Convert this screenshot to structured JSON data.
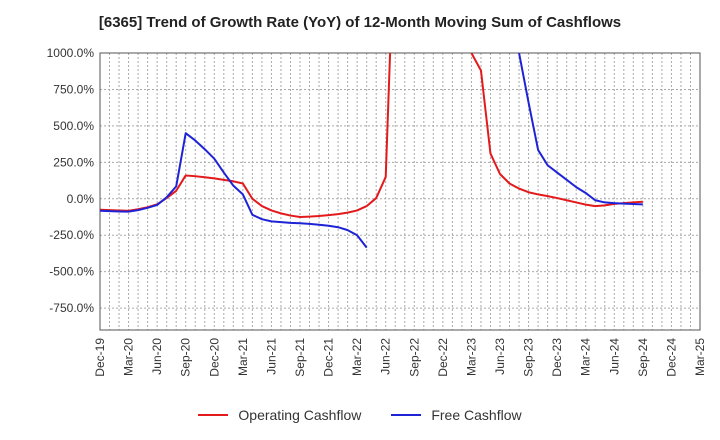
{
  "chart_data": {
    "type": "line",
    "title": "[6365]  Trend of Growth Rate (YoY) of 12-Month Moving Sum of Cashflows",
    "xlabel": "",
    "ylabel": "",
    "ylim": [
      -900,
      1000
    ],
    "y_ticks": [
      1000,
      750,
      500,
      250,
      0,
      -250,
      -500,
      -750
    ],
    "y_tick_labels": [
      "1000.0%",
      "750.0%",
      "500.0%",
      "250.0%",
      "0.0%",
      "-250.0%",
      "-500.0%",
      "-750.0%"
    ],
    "x_tick_labels": [
      "Dec-19",
      "Mar-20",
      "Jun-20",
      "Sep-20",
      "Dec-20",
      "Mar-21",
      "Jun-21",
      "Sep-21",
      "Dec-21",
      "Mar-22",
      "Jun-22",
      "Sep-22",
      "Dec-22",
      "Mar-23",
      "Jun-23",
      "Sep-23",
      "Dec-23",
      "Mar-24",
      "Jun-24",
      "Sep-24",
      "Dec-24",
      "Mar-25"
    ],
    "x_months": [
      "2019-12",
      "2020-01",
      "2020-02",
      "2020-03",
      "2020-04",
      "2020-05",
      "2020-06",
      "2020-07",
      "2020-08",
      "2020-09",
      "2020-10",
      "2020-11",
      "2020-12",
      "2021-01",
      "2021-02",
      "2021-03",
      "2021-04",
      "2021-05",
      "2021-06",
      "2021-07",
      "2021-08",
      "2021-09",
      "2021-10",
      "2021-11",
      "2021-12",
      "2022-01",
      "2022-02",
      "2022-03",
      "2022-04",
      "2022-05",
      "2022-06",
      "2022-07",
      "2022-08",
      "2022-09",
      "2022-10",
      "2022-11",
      "2022-12",
      "2023-01",
      "2023-02",
      "2023-03",
      "2023-04",
      "2023-05",
      "2023-06",
      "2023-07",
      "2023-08",
      "2023-09",
      "2023-10",
      "2023-11",
      "2023-12",
      "2024-01",
      "2024-02",
      "2024-03",
      "2024-04",
      "2024-05",
      "2024-06",
      "2024-07",
      "2024-08",
      "2024-09",
      "2024-10",
      "2024-11",
      "2024-12",
      "2025-01",
      "2025-02",
      "2025-03"
    ],
    "grid": true,
    "legend_position": "bottom",
    "series": [
      {
        "name": "Operating Cashflow",
        "color": "#e31a1c",
        "values": [
          -75,
          -78,
          -80,
          -82,
          -72,
          -58,
          -38,
          5,
          55,
          160,
          155,
          148,
          140,
          130,
          120,
          105,
          0,
          -50,
          -80,
          -100,
          -115,
          -125,
          -122,
          -118,
          -112,
          -105,
          -95,
          -80,
          -50,
          5,
          150,
          2000,
          null,
          null,
          null,
          null,
          null,
          null,
          null,
          1000,
          880,
          310,
          170,
          105,
          70,
          45,
          30,
          18,
          5,
          -10,
          -25,
          -40,
          -50,
          -45,
          -35,
          -30,
          -25,
          -20,
          null,
          null,
          null,
          null,
          null,
          null
        ]
      },
      {
        "name": "Free Cashflow",
        "color": "#1f23d6",
        "values": [
          -82,
          -85,
          -87,
          -88,
          -78,
          -62,
          -42,
          10,
          85,
          450,
          400,
          340,
          275,
          180,
          90,
          30,
          -110,
          -140,
          -155,
          -160,
          -165,
          -168,
          -172,
          -178,
          -185,
          -195,
          -215,
          -250,
          -335,
          null,
          null,
          null,
          null,
          null,
          null,
          null,
          null,
          null,
          null,
          null,
          null,
          null,
          null,
          null,
          1000,
          660,
          335,
          230,
          180,
          130,
          80,
          40,
          -10,
          -25,
          -30,
          -33,
          -36,
          -38,
          null,
          null,
          null,
          null,
          null,
          null
        ]
      }
    ]
  }
}
